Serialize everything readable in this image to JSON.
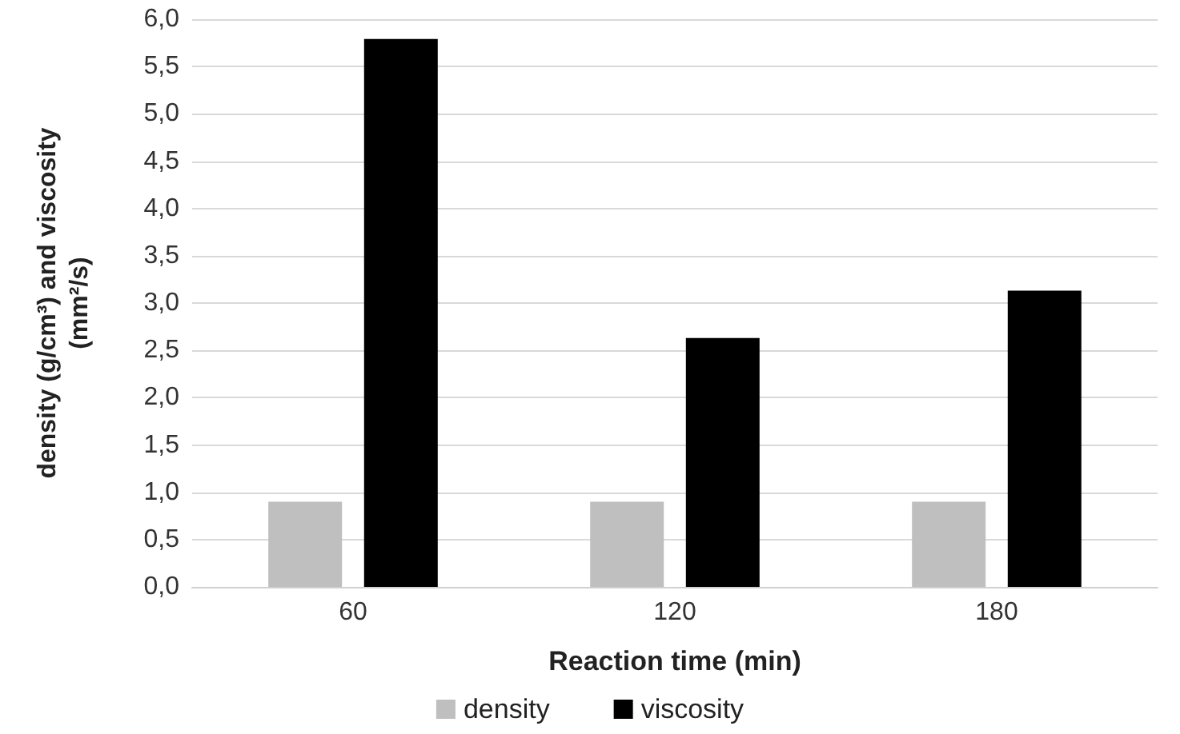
{
  "chart_data": {
    "type": "bar",
    "xlabel": "Reaction time (min)",
    "ylabel": "density (g/cm³) and viscosity\n(mm²/s)",
    "categories": [
      "60",
      "120",
      "180"
    ],
    "series": [
      {
        "name": "density",
        "color": "#bfbfbf",
        "values": [
          0.9,
          0.9,
          0.9
        ]
      },
      {
        "name": "viscosity",
        "color": "#000000",
        "values": [
          5.79,
          2.63,
          3.13
        ]
      }
    ],
    "ylim": [
      0,
      6
    ],
    "yticks": [
      {
        "value": 0,
        "label": "0,0"
      },
      {
        "value": 0.5,
        "label": "0,5"
      },
      {
        "value": 1,
        "label": "1,0"
      },
      {
        "value": 1.5,
        "label": "1,5"
      },
      {
        "value": 2,
        "label": "2,0"
      },
      {
        "value": 2.5,
        "label": "2,5"
      },
      {
        "value": 3,
        "label": "3,0"
      },
      {
        "value": 3.5,
        "label": "3,5"
      },
      {
        "value": 4,
        "label": "4,0"
      },
      {
        "value": 4.5,
        "label": "4,5"
      },
      {
        "value": 5,
        "label": "5,0"
      },
      {
        "value": 5.5,
        "label": "5,5"
      },
      {
        "value": 6,
        "label": "6,0"
      }
    ],
    "grid": "y",
    "legend": "bottom"
  }
}
